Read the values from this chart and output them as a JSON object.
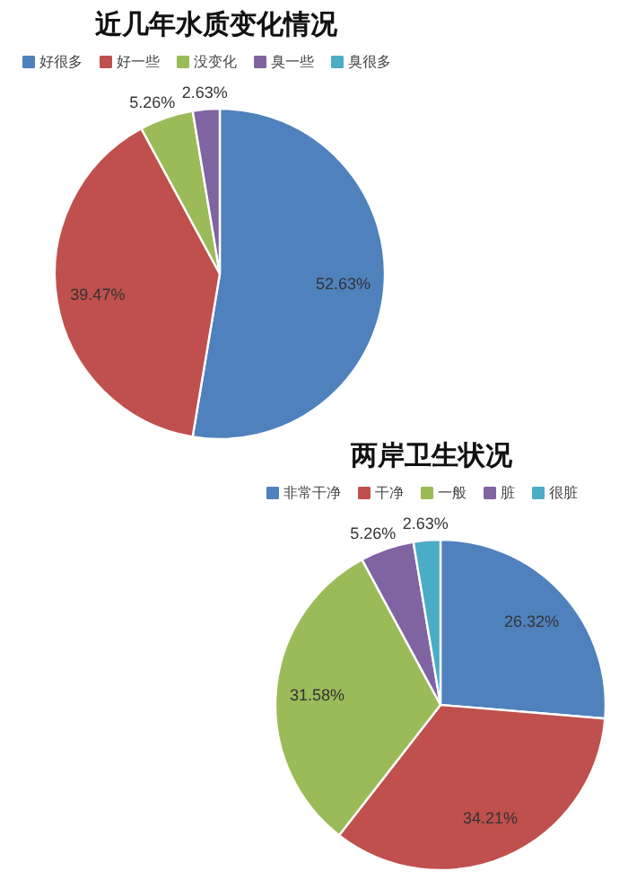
{
  "chart_data": [
    {
      "type": "pie",
      "title": "近几年水质变化情况",
      "categories": [
        "好很多",
        "好一些",
        "没变化",
        "臭一些",
        "臭很多"
      ],
      "values": [
        52.63,
        39.47,
        5.26,
        2.63,
        0
      ],
      "colors": [
        "#4f81bd",
        "#c0504d",
        "#9bbb59",
        "#8064a2",
        "#4bacc6"
      ],
      "value_labels": [
        "52.63%",
        "39.47%",
        "5.26%",
        "2.63%",
        null
      ],
      "legend": "top"
    },
    {
      "type": "pie",
      "title": "两岸卫生状况",
      "categories": [
        "非常干净",
        "干净",
        "一般",
        "脏",
        "很脏"
      ],
      "values": [
        26.32,
        34.21,
        31.58,
        5.26,
        2.63
      ],
      "colors": [
        "#4f81bd",
        "#c0504d",
        "#9bbb59",
        "#8064a2",
        "#4bacc6"
      ],
      "value_labels": [
        "26.32%",
        "34.21%",
        "31.58%",
        "5.26%",
        "2.63%"
      ],
      "legend": "top"
    }
  ]
}
